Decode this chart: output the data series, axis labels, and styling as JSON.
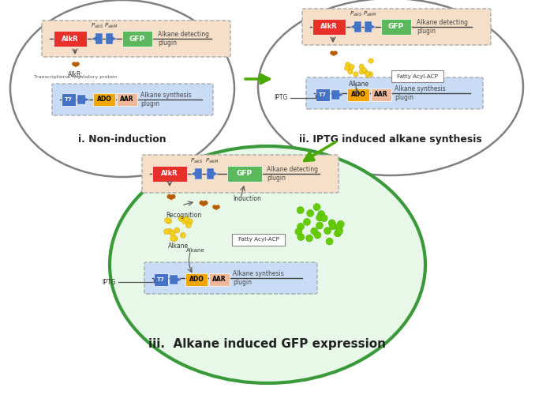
{
  "title_i": "i. Non-induction",
  "title_ii": "ii. IPTG induced alkane synthesis",
  "title_iii": "iii.  Alkane induced GFP expression",
  "alkr_color": "#e8302a",
  "gfp_color": "#5cb85c",
  "ado_color": "#f0a500",
  "aar_color": "#f0b89a",
  "t7_color": "#4472c4",
  "arrow_blue": "#4472c4",
  "detecting_bg": "#f5dfc8",
  "synthesis_bg": "#c8ddf5",
  "cell_outline_i": "#808080",
  "cell_outline_iii": "#3a9a3a",
  "cell_fill_iii": "#e8f8e8",
  "arrow_green": "#4aaa00",
  "protein_color": "#b85c00",
  "alkane_yellow": "#f5d020",
  "gfp_dots": "#66cc00",
  "text_color": "#222222",
  "sub_text_color": "#555555"
}
